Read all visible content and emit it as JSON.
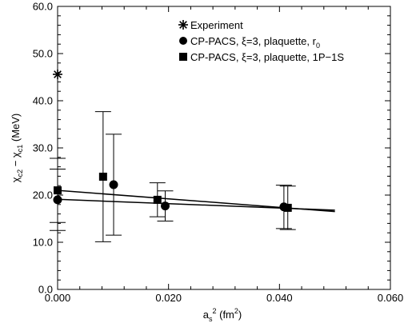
{
  "chart_data": {
    "type": "scatter",
    "xlim": [
      0.0,
      0.06
    ],
    "ylim": [
      0.0,
      60.0
    ],
    "x_ticks": [
      0.0,
      0.02,
      0.04,
      0.06
    ],
    "x_tick_labels": [
      "0.000",
      "0.020",
      "0.040",
      "0.060"
    ],
    "y_ticks": [
      0,
      10,
      20,
      30,
      40,
      50,
      60
    ],
    "y_tick_labels": [
      "0.0",
      "10.0",
      "20.0",
      "30.0",
      "40.0",
      "50.0",
      "60.0"
    ],
    "xlabel": {
      "base": "a",
      "sub": "s",
      "sup": "2",
      "rest": " (fm",
      "rest_sup": "2",
      "close": ")"
    },
    "ylabel": {
      "p1": "χ",
      "s1": "c2",
      "mid": " − χ",
      "s2": "c1",
      "end": " (MeV)"
    },
    "grid": false,
    "legend_position": "top-right",
    "series": [
      {
        "name": "Experiment",
        "marker": "star",
        "points": [
          {
            "x": 0.0,
            "y": 45.6,
            "err": 0
          }
        ]
      },
      {
        "name": "CP-PACS, ξ=3, plaquette, r",
        "name_sub": "0",
        "marker": "circle",
        "points": [
          {
            "x": 0.0,
            "y": 19.0,
            "err": 6.5
          },
          {
            "x": 0.0101,
            "y": 22.2,
            "err": 10.7
          },
          {
            "x": 0.0194,
            "y": 17.7,
            "err": 3.2
          },
          {
            "x": 0.0408,
            "y": 17.5,
            "err": 4.6
          }
        ],
        "fit": {
          "x0": 0.0,
          "y0": 19.1,
          "x1": 0.05,
          "y1": 16.8
        }
      },
      {
        "name": "CP-PACS, ξ=3, plaquette, 1P−1S",
        "marker": "square",
        "points": [
          {
            "x": 0.0,
            "y": 21.0,
            "err": 6.8
          },
          {
            "x": 0.0082,
            "y": 23.9,
            "err": 13.8
          },
          {
            "x": 0.018,
            "y": 19.0,
            "err": 3.6
          },
          {
            "x": 0.0415,
            "y": 17.3,
            "err": 4.6
          }
        ],
        "fit": {
          "x0": 0.0,
          "y0": 21.0,
          "x1": 0.05,
          "y1": 16.5
        }
      }
    ]
  }
}
